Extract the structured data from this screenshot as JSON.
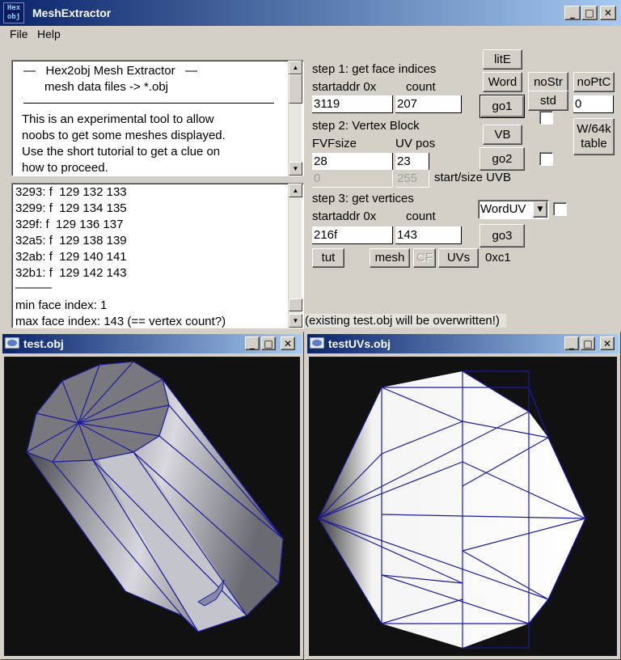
{
  "window": {
    "title": "MeshExtractor",
    "icon": "hex2obj-app-icon",
    "icon_lines": [
      "Hex",
      "obj"
    ]
  },
  "menu": {
    "file": "File",
    "help": "Help"
  },
  "info": {
    "line1": "—   Hex2obj Mesh Extractor   —",
    "line2": "mesh data files -> *.obj",
    "body": [
      "This is an experimental tool to allow",
      "noobs to get some meshes displayed.",
      "Use the short tutorial to get a clue on",
      "how to proceed."
    ]
  },
  "log": {
    "lines": [
      "3293: f  129 132 133",
      "3299: f  129 134 135",
      "329f: f  129 136 137",
      "32a5: f  129 138 139",
      "32ab: f  129 140 141",
      "32b1: f  129 142 143"
    ],
    "separator": "———",
    "min": "min face index: 1",
    "max": "max face index: 143 (== vertex count?)"
  },
  "step1": {
    "title": "step 1: get face indices",
    "addr_label": "startaddr 0x",
    "count_label": "count",
    "addr": "3119",
    "count": "207"
  },
  "step2": {
    "title": "step 2: Vertex Block",
    "fvf_label": "FVFsize",
    "uv_label": "UV pos",
    "fvf": "28",
    "uv": "23",
    "uvb_start": "0",
    "uvb_size": "255",
    "uvb_label": "start/size UVB"
  },
  "step3": {
    "title": "step 3: get vertices",
    "addr_label": "startaddr 0x",
    "count_label": "count",
    "addr": "216f",
    "count": "143"
  },
  "buttons": {
    "lite": "litE",
    "word": "Word",
    "nostr": "noStr",
    "noptc": "noPtC",
    "go1": "go1",
    "std": "std",
    "vb": "VB",
    "go2": "go2",
    "w64k_1": "W/64k",
    "w64k_2": "table",
    "go3": "go3",
    "tut": "tut",
    "mesh": "mesh",
    "cf": "CF",
    "uvs": "UVs"
  },
  "right_field": "0",
  "uv_format": "WordUV",
  "hex_value": "0xc1",
  "status": "(existing test.obj will be overwritten!)",
  "view1": {
    "title": "test.obj"
  },
  "view2": {
    "title": "testUVs.obj"
  },
  "colors": {
    "titlebar": "#0a246a",
    "wire": "#1a1aa0",
    "viewport_bg": "#111111"
  }
}
